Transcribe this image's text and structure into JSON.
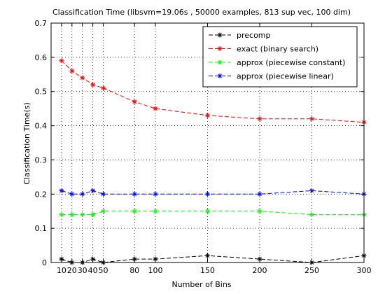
{
  "chart_data": {
    "type": "line",
    "title": "Classification Time (libsvm=19.06s , 50000 examples, 813 sup vec, 100 dim)",
    "xlabel": "Number of Bins",
    "ylabel": "Classification Time(s)",
    "xlim": [
      0,
      300
    ],
    "ylim": [
      0,
      0.7
    ],
    "x_ticks": [
      10,
      20,
      30,
      40,
      50,
      80,
      100,
      150,
      200,
      250,
      300
    ],
    "x_tick_labels": [
      "10",
      "20",
      "30",
      "40",
      "50",
      "80",
      "100",
      "150",
      "200",
      "250",
      "300"
    ],
    "y_ticks": [
      0,
      0.1,
      0.2,
      0.3,
      0.4,
      0.5,
      0.6,
      0.7
    ],
    "y_tick_labels": [
      "0",
      "0.1",
      "0.2",
      "0.3",
      "0.4",
      "0.5",
      "0.6",
      "0.7"
    ],
    "grid": true,
    "legend_position": "top-right",
    "x": [
      10,
      20,
      30,
      40,
      50,
      80,
      100,
      150,
      200,
      250,
      300
    ],
    "series": [
      {
        "name": "precomp",
        "color": "#000000",
        "marker": "asterisk",
        "values": [
          0.01,
          0.0,
          0.0,
          0.01,
          0.0,
          0.01,
          0.01,
          0.02,
          0.01,
          0.0,
          0.02
        ]
      },
      {
        "name": "exact (binary search)",
        "color": "#ff0000",
        "marker": "asterisk",
        "values": [
          0.59,
          0.56,
          0.54,
          0.52,
          0.51,
          0.47,
          0.45,
          0.43,
          0.42,
          0.42,
          0.41
        ]
      },
      {
        "name": "approx (piecewise constant)",
        "color": "#00ff00",
        "marker": "asterisk",
        "values": [
          0.14,
          0.14,
          0.14,
          0.14,
          0.15,
          0.15,
          0.15,
          0.15,
          0.15,
          0.14,
          0.14
        ]
      },
      {
        "name": "approx (piecewise linear)",
        "color": "#0000ff",
        "marker": "asterisk",
        "values": [
          0.21,
          0.2,
          0.2,
          0.21,
          0.2,
          0.2,
          0.2,
          0.2,
          0.2,
          0.21,
          0.2
        ]
      }
    ]
  }
}
